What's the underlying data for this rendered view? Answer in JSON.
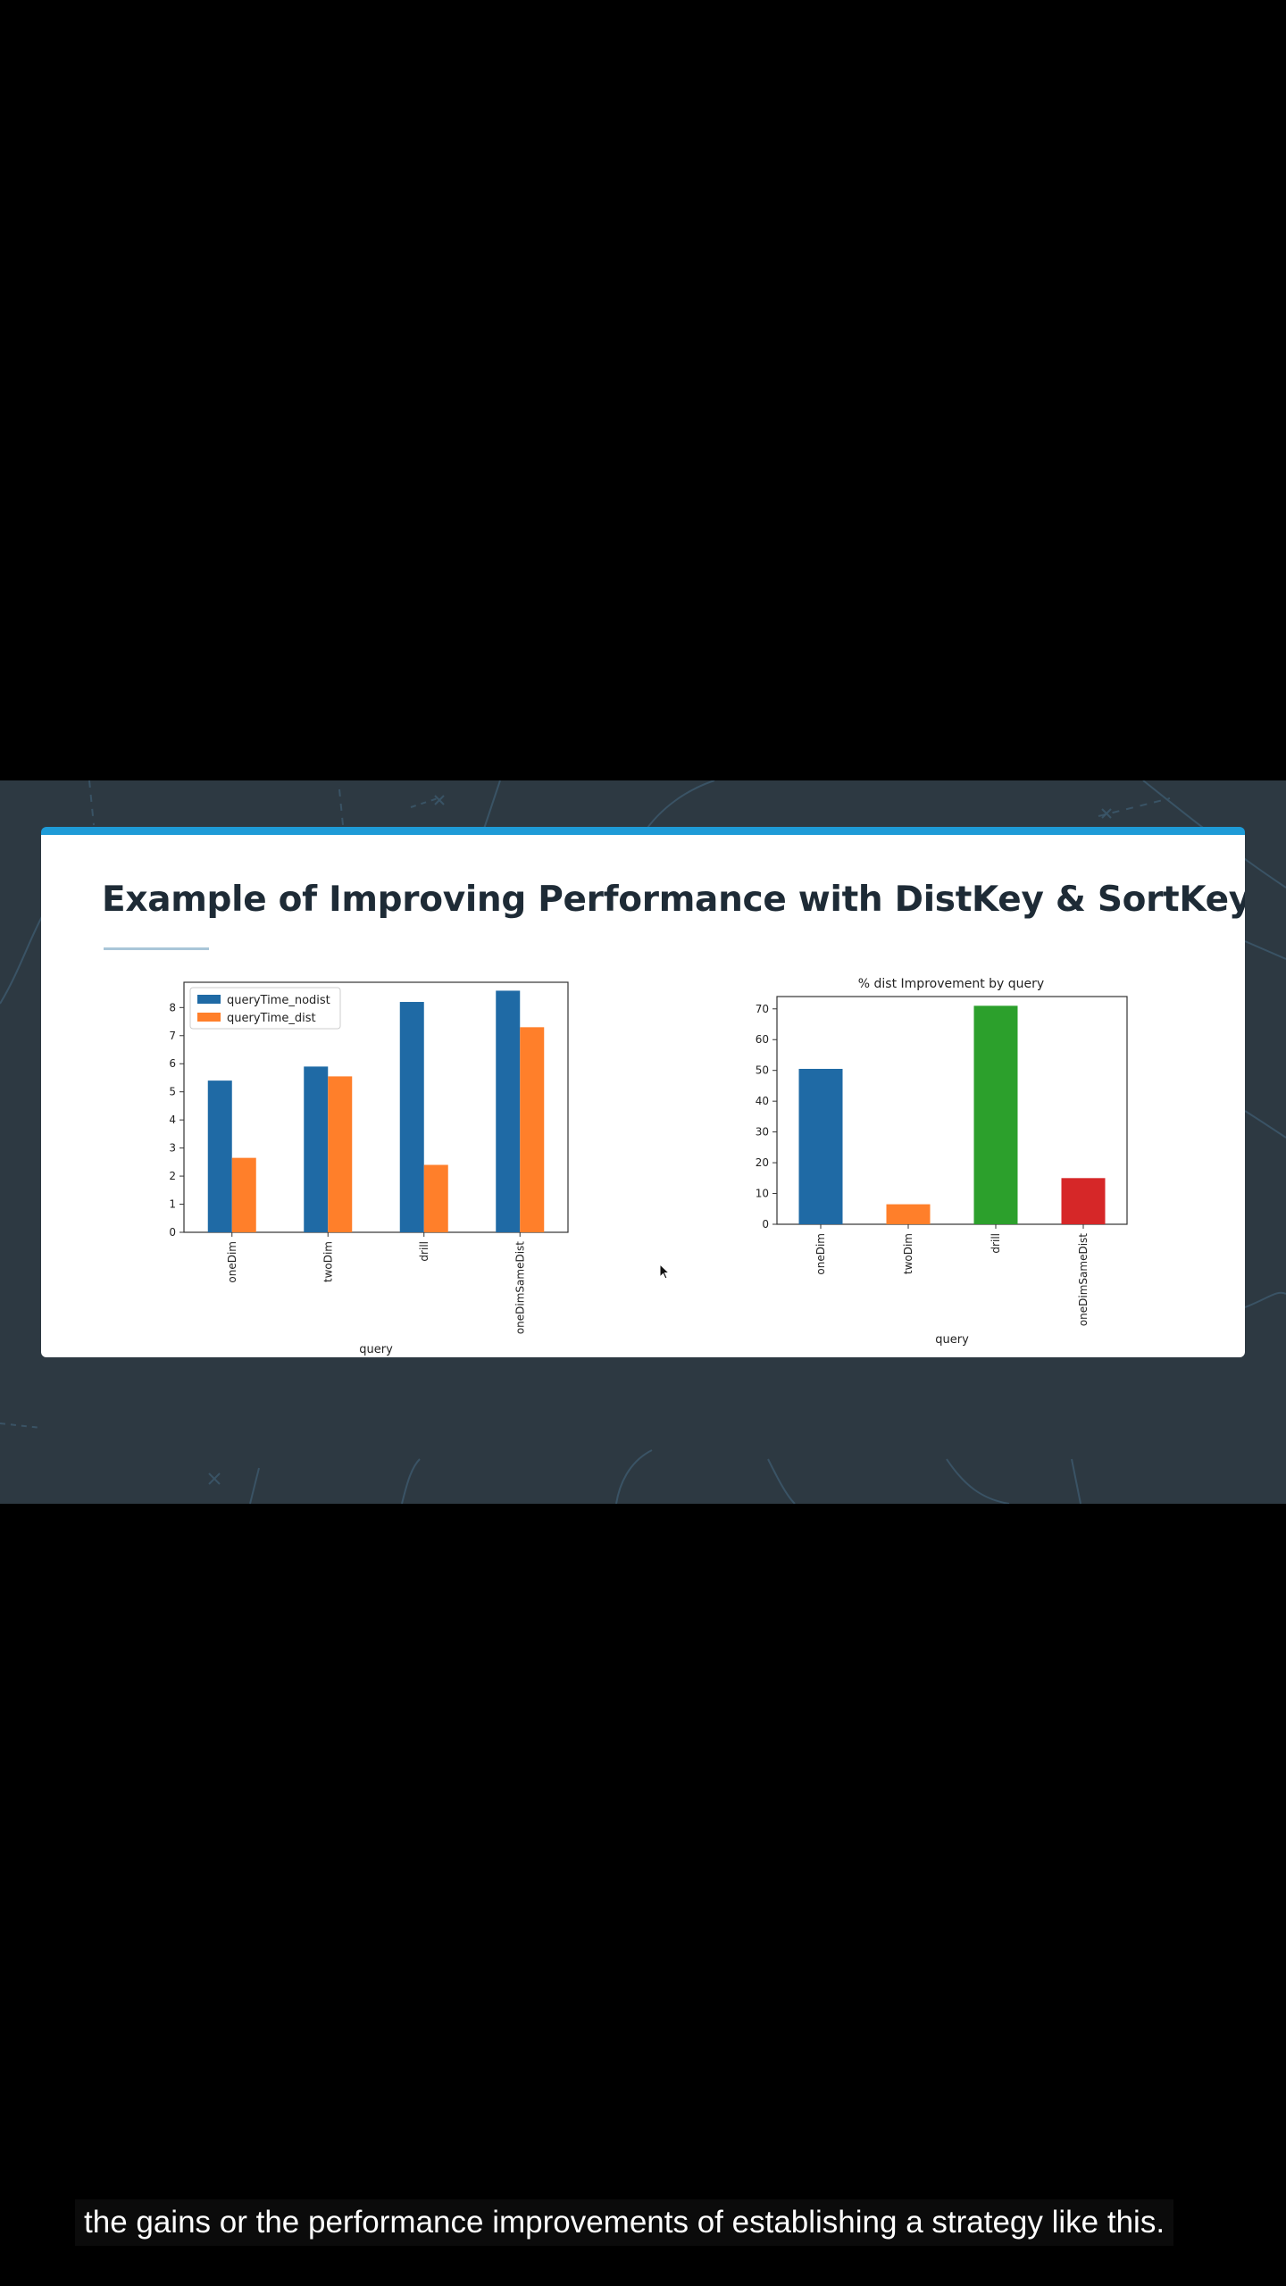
{
  "slide": {
    "title": "Example of Improving Performance with DistKey & SortKey"
  },
  "caption": {
    "text": "the gains or the performance improvements of establishing a strategy like this."
  },
  "colors": {
    "accent": "#1e9bd7",
    "series_nodist": "#1f6aa5",
    "series_dist": "#ff7f2a",
    "improvement": [
      "#1f6aa5",
      "#ff7f2a",
      "#2ca02c",
      "#d62728"
    ]
  },
  "chart_data": [
    {
      "type": "bar",
      "title": "",
      "categories": [
        "oneDim",
        "twoDim",
        "drill",
        "oneDimSameDist"
      ],
      "series": [
        {
          "name": "queryTime_nodist",
          "values": [
            5.4,
            5.9,
            8.2,
            8.6
          ]
        },
        {
          "name": "queryTime_dist",
          "values": [
            2.65,
            5.55,
            2.4,
            7.3
          ]
        }
      ],
      "xlabel": "query",
      "ylabel": "",
      "ylim": [
        0,
        8.9
      ],
      "yticks": [
        0,
        1,
        2,
        3,
        4,
        5,
        6,
        7,
        8
      ],
      "legend": "top-left",
      "grid": false
    },
    {
      "type": "bar",
      "title": "% dist Improvement by query",
      "categories": [
        "oneDim",
        "twoDim",
        "drill",
        "oneDimSameDist"
      ],
      "values": [
        50.5,
        6.5,
        71,
        15
      ],
      "xlabel": "query",
      "ylabel": "",
      "ylim": [
        0,
        74
      ],
      "yticks": [
        0,
        10,
        20,
        30,
        40,
        50,
        60,
        70
      ],
      "grid": false
    }
  ]
}
